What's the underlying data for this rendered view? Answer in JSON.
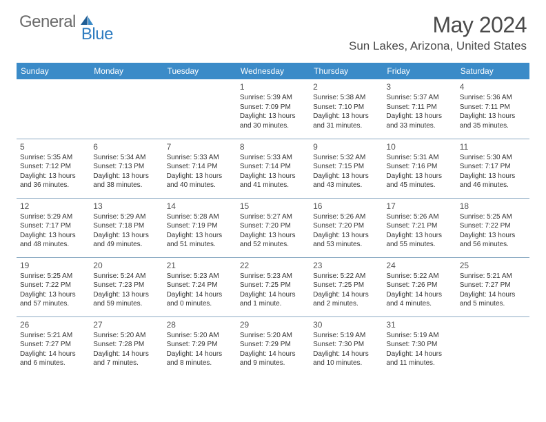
{
  "logo": {
    "text1": "General",
    "text2": "Blue"
  },
  "title": "May 2024",
  "location": "Sun Lakes, Arizona, United States",
  "header_bg": "#3b8bc8",
  "weekdays": [
    "Sunday",
    "Monday",
    "Tuesday",
    "Wednesday",
    "Thursday",
    "Friday",
    "Saturday"
  ],
  "grid": [
    [
      null,
      null,
      null,
      {
        "n": "1",
        "sr": "5:39 AM",
        "ss": "7:09 PM",
        "dl": "13 hours and 30 minutes."
      },
      {
        "n": "2",
        "sr": "5:38 AM",
        "ss": "7:10 PM",
        "dl": "13 hours and 31 minutes."
      },
      {
        "n": "3",
        "sr": "5:37 AM",
        "ss": "7:11 PM",
        "dl": "13 hours and 33 minutes."
      },
      {
        "n": "4",
        "sr": "5:36 AM",
        "ss": "7:11 PM",
        "dl": "13 hours and 35 minutes."
      }
    ],
    [
      {
        "n": "5",
        "sr": "5:35 AM",
        "ss": "7:12 PM",
        "dl": "13 hours and 36 minutes."
      },
      {
        "n": "6",
        "sr": "5:34 AM",
        "ss": "7:13 PM",
        "dl": "13 hours and 38 minutes."
      },
      {
        "n": "7",
        "sr": "5:33 AM",
        "ss": "7:14 PM",
        "dl": "13 hours and 40 minutes."
      },
      {
        "n": "8",
        "sr": "5:33 AM",
        "ss": "7:14 PM",
        "dl": "13 hours and 41 minutes."
      },
      {
        "n": "9",
        "sr": "5:32 AM",
        "ss": "7:15 PM",
        "dl": "13 hours and 43 minutes."
      },
      {
        "n": "10",
        "sr": "5:31 AM",
        "ss": "7:16 PM",
        "dl": "13 hours and 45 minutes."
      },
      {
        "n": "11",
        "sr": "5:30 AM",
        "ss": "7:17 PM",
        "dl": "13 hours and 46 minutes."
      }
    ],
    [
      {
        "n": "12",
        "sr": "5:29 AM",
        "ss": "7:17 PM",
        "dl": "13 hours and 48 minutes."
      },
      {
        "n": "13",
        "sr": "5:29 AM",
        "ss": "7:18 PM",
        "dl": "13 hours and 49 minutes."
      },
      {
        "n": "14",
        "sr": "5:28 AM",
        "ss": "7:19 PM",
        "dl": "13 hours and 51 minutes."
      },
      {
        "n": "15",
        "sr": "5:27 AM",
        "ss": "7:20 PM",
        "dl": "13 hours and 52 minutes."
      },
      {
        "n": "16",
        "sr": "5:26 AM",
        "ss": "7:20 PM",
        "dl": "13 hours and 53 minutes."
      },
      {
        "n": "17",
        "sr": "5:26 AM",
        "ss": "7:21 PM",
        "dl": "13 hours and 55 minutes."
      },
      {
        "n": "18",
        "sr": "5:25 AM",
        "ss": "7:22 PM",
        "dl": "13 hours and 56 minutes."
      }
    ],
    [
      {
        "n": "19",
        "sr": "5:25 AM",
        "ss": "7:22 PM",
        "dl": "13 hours and 57 minutes."
      },
      {
        "n": "20",
        "sr": "5:24 AM",
        "ss": "7:23 PM",
        "dl": "13 hours and 59 minutes."
      },
      {
        "n": "21",
        "sr": "5:23 AM",
        "ss": "7:24 PM",
        "dl": "14 hours and 0 minutes."
      },
      {
        "n": "22",
        "sr": "5:23 AM",
        "ss": "7:25 PM",
        "dl": "14 hours and 1 minute."
      },
      {
        "n": "23",
        "sr": "5:22 AM",
        "ss": "7:25 PM",
        "dl": "14 hours and 2 minutes."
      },
      {
        "n": "24",
        "sr": "5:22 AM",
        "ss": "7:26 PM",
        "dl": "14 hours and 4 minutes."
      },
      {
        "n": "25",
        "sr": "5:21 AM",
        "ss": "7:27 PM",
        "dl": "14 hours and 5 minutes."
      }
    ],
    [
      {
        "n": "26",
        "sr": "5:21 AM",
        "ss": "7:27 PM",
        "dl": "14 hours and 6 minutes."
      },
      {
        "n": "27",
        "sr": "5:20 AM",
        "ss": "7:28 PM",
        "dl": "14 hours and 7 minutes."
      },
      {
        "n": "28",
        "sr": "5:20 AM",
        "ss": "7:29 PM",
        "dl": "14 hours and 8 minutes."
      },
      {
        "n": "29",
        "sr": "5:20 AM",
        "ss": "7:29 PM",
        "dl": "14 hours and 9 minutes."
      },
      {
        "n": "30",
        "sr": "5:19 AM",
        "ss": "7:30 PM",
        "dl": "14 hours and 10 minutes."
      },
      {
        "n": "31",
        "sr": "5:19 AM",
        "ss": "7:30 PM",
        "dl": "14 hours and 11 minutes."
      },
      null
    ]
  ],
  "labels": {
    "sunrise": "Sunrise:",
    "sunset": "Sunset:",
    "daylight": "Daylight:"
  }
}
